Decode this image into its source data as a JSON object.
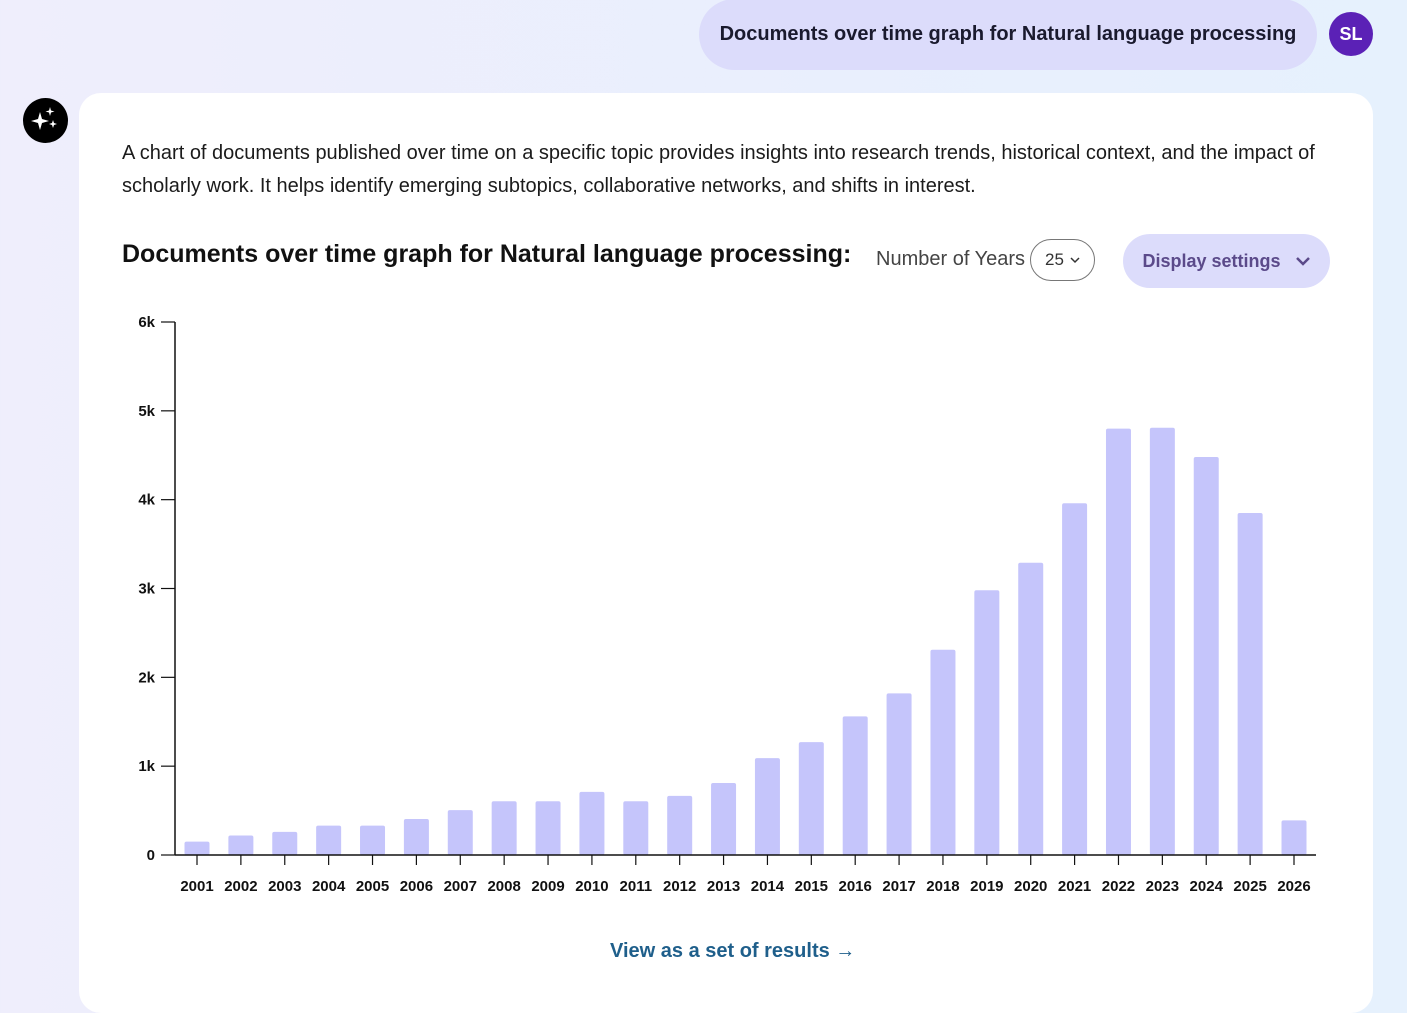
{
  "header": {
    "query": "Documents over time graph for Natural language processing",
    "avatar_initials": "SL"
  },
  "icons": {
    "assistant": "sparkles-icon"
  },
  "description": "A chart of documents published over time on a specific topic provides insights into research trends, historical context, and the impact of scholarly work. It helps identify emerging subtopics, collaborative networks, and shifts in interest.",
  "controls": {
    "years_label": "Number of Years",
    "years_value": "25",
    "display_settings": "Display settings"
  },
  "link": {
    "view_results": "View as a set of results →"
  },
  "colors": {
    "bar": "#c5c5fb",
    "accent": "#5b21b6",
    "link": "#1f5f8b"
  },
  "chart_data": {
    "type": "bar",
    "title": "Documents over time graph for Natural language processing:",
    "categories": [
      "2001",
      "2002",
      "2003",
      "2004",
      "2005",
      "2006",
      "2007",
      "2008",
      "2009",
      "2010",
      "2011",
      "2012",
      "2013",
      "2014",
      "2015",
      "2016",
      "2017",
      "2018",
      "2019",
      "2020",
      "2021",
      "2022",
      "2023",
      "2024",
      "2025",
      "2026"
    ],
    "values": [
      150,
      220,
      260,
      330,
      330,
      405,
      505,
      605,
      605,
      710,
      605,
      665,
      810,
      1090,
      1270,
      1560,
      1820,
      2310,
      2980,
      3290,
      3960,
      4800,
      4810,
      4480,
      3850,
      390
    ],
    "ylim": [
      0,
      6000
    ],
    "yticks": [
      {
        "v": 0,
        "label": "0"
      },
      {
        "v": 1000,
        "label": "1k"
      },
      {
        "v": 2000,
        "label": "2k"
      },
      {
        "v": 3000,
        "label": "3k"
      },
      {
        "v": 4000,
        "label": "4k"
      },
      {
        "v": 5000,
        "label": "5k"
      },
      {
        "v": 6000,
        "label": "6k"
      }
    ],
    "grid": false,
    "xlabel": "",
    "ylabel": ""
  }
}
